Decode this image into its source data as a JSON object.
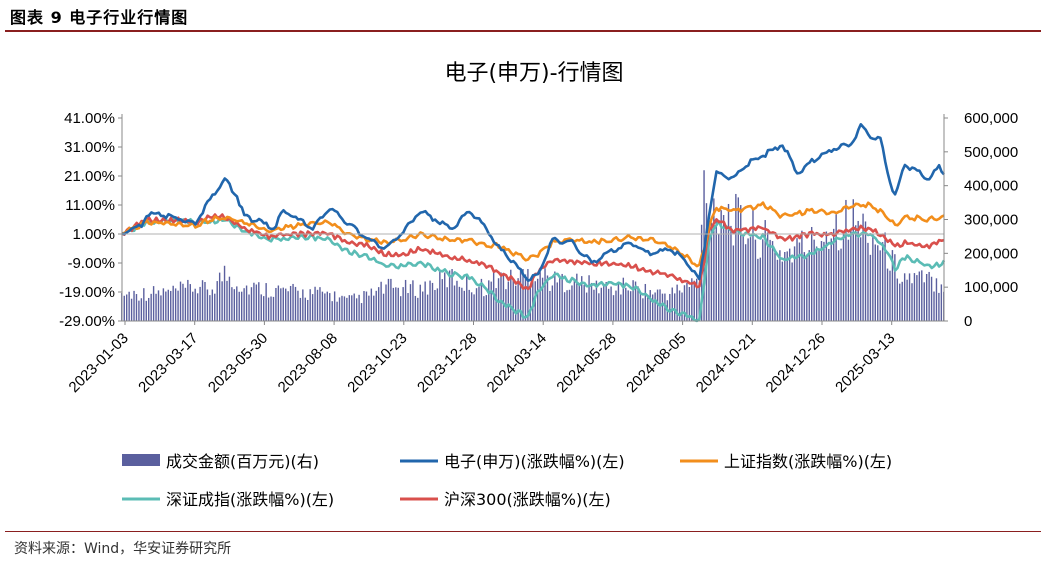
{
  "figure_label": "图表 9 电子行业行情图",
  "source_note": "资料来源：Wind，华安证券研究所",
  "colors": {
    "electronics": "#2166ac",
    "shanghai": "#f28e1c",
    "shenzhen": "#5bbcb5",
    "hs300": "#d9504c",
    "volume": "#5a5f9e",
    "title_rule": "#8a1f1f"
  },
  "chart_data": {
    "type": "line",
    "title": "电子(申万)-行情图",
    "y_left": {
      "ticks": [
        "41.00%",
        "31.00%",
        "21.00%",
        "11.00%",
        "1.00%",
        "-9.00%",
        "-19.00%",
        "-29.00%"
      ],
      "min": -29,
      "max": 41
    },
    "y_right": {
      "ticks": [
        "600,000",
        "500,000",
        "400,000",
        "300,000",
        "200,000",
        "100,000",
        "0"
      ],
      "min": 0,
      "max": 600000
    },
    "x_ticks": [
      "2023-01-03",
      "2023-03-17",
      "2023-05-30",
      "2023-08-08",
      "2023-10-23",
      "2023-12-28",
      "2024-03-14",
      "2024-05-28",
      "2024-08-05",
      "2024-10-21",
      "2024-12-26",
      "2025-03-13"
    ],
    "series": [
      {
        "name": "电子(申万)(涨跌幅%)(左)",
        "axis": "left",
        "color_key": "electronics",
        "values": [
          [
            0,
            1
          ],
          [
            8,
            4
          ],
          [
            10,
            8
          ],
          [
            20,
            7
          ],
          [
            30,
            5
          ],
          [
            36,
            13
          ],
          [
            42,
            20
          ],
          [
            47,
            14
          ],
          [
            50,
            7
          ],
          [
            57,
            5
          ],
          [
            62,
            3
          ],
          [
            66,
            9
          ],
          [
            72,
            6
          ],
          [
            78,
            3
          ],
          [
            85,
            10
          ],
          [
            92,
            5
          ],
          [
            101,
            -1
          ],
          [
            108,
            -4
          ],
          [
            115,
            2
          ],
          [
            122,
            9
          ],
          [
            128,
            6
          ],
          [
            135,
            3
          ],
          [
            142,
            9
          ],
          [
            149,
            3
          ],
          [
            153,
            -3
          ],
          [
            158,
            -7
          ],
          [
            162,
            -11
          ],
          [
            166,
            -15
          ],
          [
            170,
            -13
          ],
          [
            176,
            -1
          ],
          [
            184,
            -2
          ],
          [
            192,
            -9
          ],
          [
            200,
            -5
          ],
          [
            208,
            -2
          ],
          [
            216,
            -6
          ],
          [
            224,
            -4
          ],
          [
            230,
            -8
          ],
          [
            236,
            -15
          ],
          [
            238,
            -4
          ],
          [
            240,
            8
          ],
          [
            243,
            22
          ],
          [
            250,
            20
          ],
          [
            255,
            25
          ],
          [
            262,
            28
          ],
          [
            270,
            32
          ],
          [
            276,
            22
          ],
          [
            282,
            26
          ],
          [
            290,
            30
          ],
          [
            298,
            32
          ],
          [
            302,
            38
          ],
          [
            306,
            35
          ],
          [
            310,
            34
          ],
          [
            313,
            22
          ],
          [
            316,
            14
          ],
          [
            320,
            25
          ],
          [
            326,
            22
          ],
          [
            330,
            20
          ],
          [
            334,
            24
          ],
          [
            336,
            22
          ]
        ]
      },
      {
        "name": "上证指数(涨跌幅%)(左)",
        "axis": "left",
        "color_key": "shanghai",
        "values": [
          [
            0,
            1
          ],
          [
            10,
            5
          ],
          [
            20,
            5
          ],
          [
            30,
            4
          ],
          [
            36,
            6
          ],
          [
            42,
            7
          ],
          [
            50,
            5
          ],
          [
            60,
            2
          ],
          [
            72,
            4
          ],
          [
            85,
            5
          ],
          [
            92,
            1
          ],
          [
            101,
            -1
          ],
          [
            108,
            -2
          ],
          [
            115,
            -1
          ],
          [
            122,
            1
          ],
          [
            135,
            -1
          ],
          [
            142,
            -1
          ],
          [
            149,
            -3
          ],
          [
            153,
            -3
          ],
          [
            158,
            -5
          ],
          [
            166,
            -8
          ],
          [
            170,
            -6
          ],
          [
            176,
            -2
          ],
          [
            184,
            -1
          ],
          [
            192,
            -2
          ],
          [
            200,
            -1
          ],
          [
            208,
            0
          ],
          [
            216,
            -1
          ],
          [
            224,
            -3
          ],
          [
            236,
            -10
          ],
          [
            238,
            -4
          ],
          [
            240,
            4
          ],
          [
            243,
            10
          ],
          [
            250,
            9
          ],
          [
            262,
            11
          ],
          [
            270,
            7
          ],
          [
            282,
            9
          ],
          [
            290,
            8
          ],
          [
            298,
            11
          ],
          [
            306,
            11
          ],
          [
            313,
            7
          ],
          [
            316,
            4
          ],
          [
            320,
            7
          ],
          [
            330,
            6
          ],
          [
            336,
            7
          ]
        ]
      },
      {
        "name": "深证成指(涨跌幅%)(左)",
        "axis": "left",
        "color_key": "shenzhen",
        "values": [
          [
            0,
            1
          ],
          [
            10,
            5
          ],
          [
            20,
            6
          ],
          [
            30,
            5
          ],
          [
            36,
            5
          ],
          [
            42,
            6
          ],
          [
            50,
            2
          ],
          [
            60,
            -1
          ],
          [
            72,
            0
          ],
          [
            85,
            -1
          ],
          [
            92,
            -5
          ],
          [
            101,
            -7
          ],
          [
            108,
            -10
          ],
          [
            115,
            -10
          ],
          [
            122,
            -9
          ],
          [
            135,
            -13
          ],
          [
            142,
            -14
          ],
          [
            149,
            -18
          ],
          [
            153,
            -21
          ],
          [
            158,
            -24
          ],
          [
            162,
            -26
          ],
          [
            166,
            -28
          ],
          [
            170,
            -19
          ],
          [
            176,
            -13
          ],
          [
            184,
            -15
          ],
          [
            192,
            -17
          ],
          [
            200,
            -16
          ],
          [
            208,
            -17
          ],
          [
            216,
            -21
          ],
          [
            224,
            -25
          ],
          [
            236,
            -29
          ],
          [
            238,
            -15
          ],
          [
            240,
            -1
          ],
          [
            243,
            5
          ],
          [
            250,
            2
          ],
          [
            262,
            0
          ],
          [
            270,
            -8
          ],
          [
            282,
            -6
          ],
          [
            290,
            -2
          ],
          [
            298,
            1
          ],
          [
            306,
            1
          ],
          [
            313,
            -5
          ],
          [
            316,
            -11
          ],
          [
            320,
            -7
          ],
          [
            330,
            -10
          ],
          [
            336,
            -9
          ]
        ]
      },
      {
        "name": "沪深300(涨跌幅%)(左)",
        "axis": "left",
        "color_key": "hs300",
        "values": [
          [
            0,
            1
          ],
          [
            10,
            6
          ],
          [
            20,
            6
          ],
          [
            30,
            5
          ],
          [
            36,
            7
          ],
          [
            42,
            7
          ],
          [
            50,
            3
          ],
          [
            60,
            0
          ],
          [
            72,
            1
          ],
          [
            85,
            1
          ],
          [
            92,
            -2
          ],
          [
            101,
            -3
          ],
          [
            108,
            -6
          ],
          [
            115,
            -6
          ],
          [
            122,
            -4
          ],
          [
            135,
            -7
          ],
          [
            142,
            -8
          ],
          [
            149,
            -10
          ],
          [
            153,
            -12
          ],
          [
            158,
            -14
          ],
          [
            166,
            -18
          ],
          [
            170,
            -12
          ],
          [
            176,
            -8
          ],
          [
            184,
            -9
          ],
          [
            192,
            -9
          ],
          [
            200,
            -9
          ],
          [
            208,
            -10
          ],
          [
            216,
            -12
          ],
          [
            224,
            -13
          ],
          [
            236,
            -17
          ],
          [
            238,
            -8
          ],
          [
            240,
            2
          ],
          [
            243,
            6
          ],
          [
            250,
            2
          ],
          [
            262,
            3
          ],
          [
            270,
            -1
          ],
          [
            282,
            1
          ],
          [
            290,
            1
          ],
          [
            298,
            3
          ],
          [
            306,
            3
          ],
          [
            313,
            -1
          ],
          [
            316,
            -3
          ],
          [
            320,
            -2
          ],
          [
            330,
            -3
          ],
          [
            336,
            -1
          ]
        ]
      },
      {
        "name": "成交金额(百万元)(右)",
        "axis": "right",
        "color_key": "volume",
        "kind": "bar",
        "values": [
          [
            0,
            80000
          ],
          [
            20,
            85000
          ],
          [
            30,
            100000
          ],
          [
            36,
            90000
          ],
          [
            42,
            140000
          ],
          [
            50,
            100000
          ],
          [
            60,
            95000
          ],
          [
            72,
            85000
          ],
          [
            85,
            80000
          ],
          [
            92,
            60000
          ],
          [
            101,
            75000
          ],
          [
            108,
            100000
          ],
          [
            115,
            95000
          ],
          [
            122,
            95000
          ],
          [
            135,
            130000
          ],
          [
            142,
            105000
          ],
          [
            149,
            100000
          ],
          [
            153,
            130000
          ],
          [
            158,
            120000
          ],
          [
            166,
            140000
          ],
          [
            170,
            150000
          ],
          [
            176,
            115000
          ],
          [
            184,
            120000
          ],
          [
            192,
            105000
          ],
          [
            200,
            95000
          ],
          [
            208,
            105000
          ],
          [
            216,
            85000
          ],
          [
            224,
            80000
          ],
          [
            236,
            120000
          ],
          [
            238,
            400000
          ],
          [
            240,
            300000
          ],
          [
            243,
            350000
          ],
          [
            250,
            300000
          ],
          [
            262,
            240000
          ],
          [
            270,
            200000
          ],
          [
            282,
            230000
          ],
          [
            290,
            280000
          ],
          [
            298,
            300000
          ],
          [
            306,
            260000
          ],
          [
            313,
            200000
          ],
          [
            316,
            160000
          ],
          [
            320,
            130000
          ],
          [
            330,
            120000
          ],
          [
            336,
            110000
          ]
        ]
      }
    ],
    "legend": {
      "placement": "bottom",
      "items": [
        "成交金额(百万元)(右)",
        "电子(申万)(涨跌幅%)(左)",
        "上证指数(涨跌幅%)(左)",
        "深证成指(涨跌幅%)(左)",
        "沪深300(涨跌幅%)(左)"
      ]
    },
    "grid": false
  }
}
